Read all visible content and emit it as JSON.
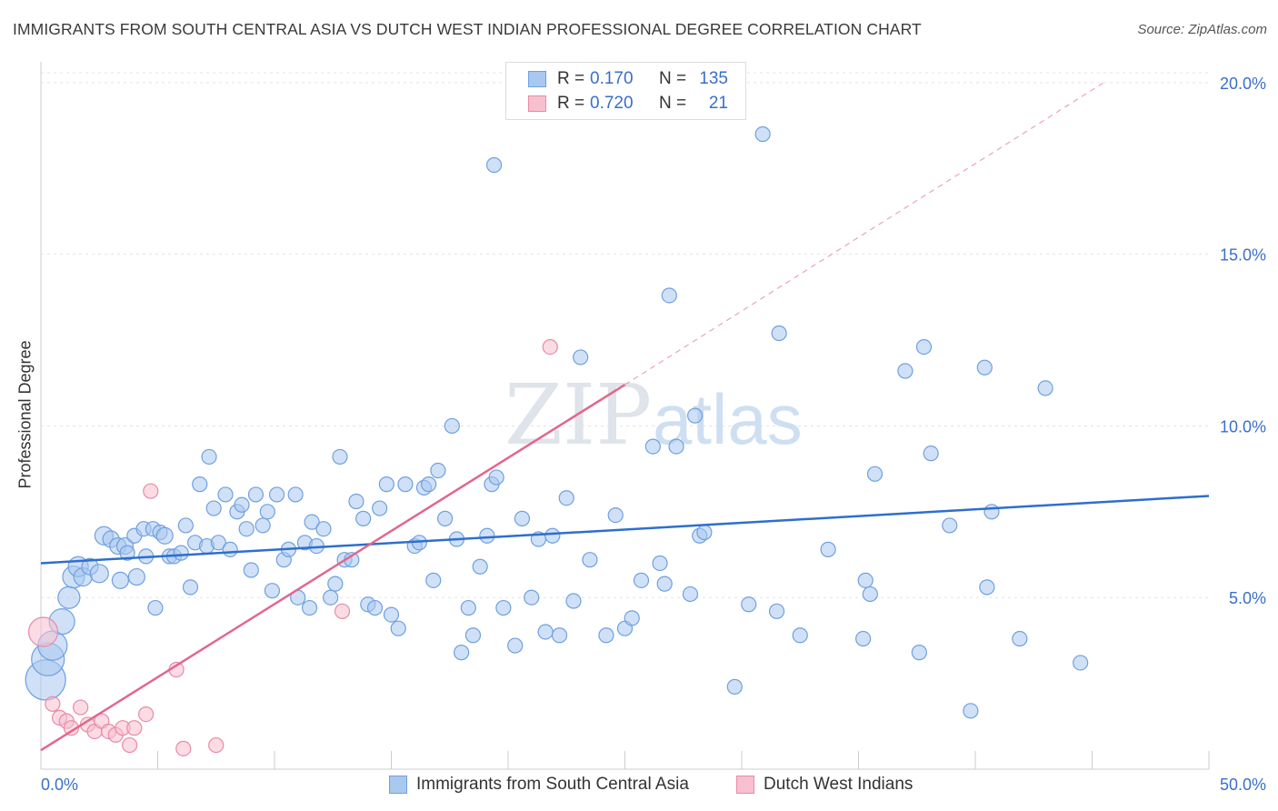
{
  "title": "IMMIGRANTS FROM SOUTH CENTRAL ASIA VS DUTCH WEST INDIAN PROFESSIONAL DEGREE CORRELATION CHART",
  "source": "Source: ZipAtlas.com",
  "watermark": {
    "zip": "ZIP",
    "atlas": "atlas"
  },
  "legend_box": {
    "rows": [
      {
        "r_label": "R =",
        "r_value": "0.170",
        "n_label": "N =",
        "n_value": "135",
        "color": "#a9c8f0",
        "border": "#6fa0df"
      },
      {
        "r_label": "R =",
        "r_value": "0.720",
        "n_label": "N =",
        "n_value": "21",
        "color": "#f7c0cf",
        "border": "#e98aa6"
      }
    ]
  },
  "bottom_legend": [
    {
      "label": "Immigrants from South Central Asia",
      "color": "#a9c8f0",
      "border": "#6fa0df"
    },
    {
      "label": "Dutch West Indians",
      "color": "#f7c0cf",
      "border": "#e98aa6"
    }
  ],
  "chart_data": {
    "type": "scatter",
    "title": "IMMIGRANTS FROM SOUTH CENTRAL ASIA VS DUTCH WEST INDIAN PROFESSIONAL DEGREE CORRELATION CHART",
    "xlabel": "",
    "ylabel": "Professional Degree",
    "xlim": [
      0,
      50
    ],
    "ylim": [
      0,
      20.5
    ],
    "x_tick_labels": [
      "0.0%",
      "50.0%"
    ],
    "y_ticks": [
      5,
      10,
      15,
      20
    ],
    "y_tick_labels": [
      "5.0%",
      "10.0%",
      "15.0%",
      "20.0%"
    ],
    "grid": true,
    "legend_position": "top-center",
    "series": [
      {
        "name": "Immigrants from South Central Asia",
        "color": "#6fa0df",
        "fill": "#a9c8f0",
        "trend": {
          "x": [
            0,
            50
          ],
          "y": [
            6.0,
            7.96
          ]
        },
        "points": [
          [
            0.2,
            2.6,
            22
          ],
          [
            0.3,
            3.2,
            18
          ],
          [
            0.5,
            3.6,
            16
          ],
          [
            0.9,
            4.3,
            14
          ],
          [
            1.2,
            5.0,
            12
          ],
          [
            1.4,
            5.6,
            12
          ],
          [
            1.6,
            5.9,
            11
          ],
          [
            1.8,
            5.6,
            10
          ],
          [
            2.1,
            5.9,
            9
          ],
          [
            2.5,
            5.7,
            10
          ],
          [
            2.7,
            6.8,
            10
          ],
          [
            3.0,
            6.7,
            9
          ],
          [
            3.3,
            6.5,
            9
          ],
          [
            3.4,
            5.5,
            9
          ],
          [
            3.6,
            6.5,
            9
          ],
          [
            3.7,
            6.3,
            8
          ],
          [
            4.0,
            6.8,
            8
          ],
          [
            4.1,
            5.6,
            9
          ],
          [
            4.4,
            7.0,
            8
          ],
          [
            4.5,
            6.2,
            8
          ],
          [
            4.8,
            7.0,
            8
          ],
          [
            4.9,
            4.7,
            8
          ],
          [
            5.1,
            6.9,
            8
          ],
          [
            5.3,
            6.8,
            9
          ],
          [
            5.5,
            6.2,
            8
          ],
          [
            5.7,
            6.2,
            8
          ],
          [
            6.0,
            6.3,
            8
          ],
          [
            6.2,
            7.1,
            8
          ],
          [
            6.4,
            5.3,
            8
          ],
          [
            6.6,
            6.6,
            8
          ],
          [
            6.8,
            8.3,
            8
          ],
          [
            7.1,
            6.5,
            8
          ],
          [
            7.2,
            9.1,
            8
          ],
          [
            7.4,
            7.6,
            8
          ],
          [
            7.6,
            6.6,
            8
          ],
          [
            7.9,
            8.0,
            8
          ],
          [
            8.1,
            6.4,
            8
          ],
          [
            8.4,
            7.5,
            8
          ],
          [
            8.6,
            7.7,
            8
          ],
          [
            8.8,
            7.0,
            8
          ],
          [
            9.0,
            5.8,
            8
          ],
          [
            9.2,
            8.0,
            8
          ],
          [
            9.5,
            7.1,
            8
          ],
          [
            9.7,
            7.5,
            8
          ],
          [
            9.9,
            5.2,
            8
          ],
          [
            10.1,
            8.0,
            8
          ],
          [
            10.4,
            6.1,
            8
          ],
          [
            10.6,
            6.4,
            8
          ],
          [
            10.9,
            8.0,
            8
          ],
          [
            11.0,
            5.0,
            8
          ],
          [
            11.3,
            6.6,
            8
          ],
          [
            11.5,
            4.7,
            8
          ],
          [
            11.6,
            7.2,
            8
          ],
          [
            11.8,
            6.5,
            8
          ],
          [
            12.1,
            7.0,
            8
          ],
          [
            12.4,
            5.0,
            8
          ],
          [
            12.6,
            5.4,
            8
          ],
          [
            12.8,
            9.1,
            8
          ],
          [
            13.0,
            6.1,
            8
          ],
          [
            13.3,
            6.1,
            8
          ],
          [
            13.5,
            7.8,
            8
          ],
          [
            13.8,
            7.3,
            8
          ],
          [
            14.0,
            4.8,
            8
          ],
          [
            14.3,
            4.7,
            8
          ],
          [
            14.5,
            7.6,
            8
          ],
          [
            14.8,
            8.3,
            8
          ],
          [
            15.0,
            4.5,
            8
          ],
          [
            15.3,
            4.1,
            8
          ],
          [
            15.6,
            8.3,
            8
          ],
          [
            16.0,
            6.5,
            8
          ],
          [
            16.2,
            6.6,
            8
          ],
          [
            16.4,
            8.2,
            8
          ],
          [
            16.6,
            8.3,
            8
          ],
          [
            16.8,
            5.5,
            8
          ],
          [
            17.0,
            8.7,
            8
          ],
          [
            17.3,
            7.3,
            8
          ],
          [
            17.6,
            10.0,
            8
          ],
          [
            17.8,
            6.7,
            8
          ],
          [
            18.0,
            3.4,
            8
          ],
          [
            18.3,
            4.7,
            8
          ],
          [
            18.5,
            3.9,
            8
          ],
          [
            18.8,
            5.9,
            8
          ],
          [
            19.1,
            6.8,
            8
          ],
          [
            19.3,
            8.3,
            8
          ],
          [
            19.5,
            8.5,
            8
          ],
          [
            19.8,
            4.7,
            8
          ],
          [
            19.4,
            17.6,
            8
          ],
          [
            20.3,
            3.6,
            8
          ],
          [
            20.6,
            7.3,
            8
          ],
          [
            21.0,
            5.0,
            8
          ],
          [
            21.3,
            6.7,
            8
          ],
          [
            21.6,
            4.0,
            8
          ],
          [
            21.9,
            6.8,
            8
          ],
          [
            22.2,
            3.9,
            8
          ],
          [
            22.5,
            7.9,
            8
          ],
          [
            22.8,
            4.9,
            8
          ],
          [
            23.1,
            12.0,
            8
          ],
          [
            23.5,
            6.1,
            8
          ],
          [
            24.2,
            3.9,
            8
          ],
          [
            24.6,
            7.4,
            8
          ],
          [
            25.0,
            4.1,
            8
          ],
          [
            25.3,
            4.4,
            8
          ],
          [
            25.7,
            5.5,
            8
          ],
          [
            26.2,
            9.4,
            8
          ],
          [
            26.5,
            6.0,
            8
          ],
          [
            26.7,
            5.4,
            8
          ],
          [
            26.9,
            13.8,
            8
          ],
          [
            27.2,
            9.4,
            8
          ],
          [
            27.8,
            5.1,
            8
          ],
          [
            28.0,
            10.3,
            8
          ],
          [
            28.2,
            6.8,
            8
          ],
          [
            29.7,
            2.4,
            8
          ],
          [
            30.3,
            4.8,
            8
          ],
          [
            31.5,
            4.6,
            8
          ],
          [
            31.6,
            12.7,
            8
          ],
          [
            30.9,
            18.5,
            8
          ],
          [
            32.5,
            3.9,
            8
          ],
          [
            33.7,
            6.4,
            8
          ],
          [
            35.2,
            3.8,
            8
          ],
          [
            35.3,
            5.5,
            8
          ],
          [
            35.5,
            5.1,
            8
          ],
          [
            35.7,
            8.6,
            8
          ],
          [
            37.0,
            11.6,
            8
          ],
          [
            37.6,
            3.4,
            8
          ],
          [
            37.8,
            12.3,
            8
          ],
          [
            38.1,
            9.2,
            8
          ],
          [
            38.9,
            7.1,
            8
          ],
          [
            39.8,
            1.7,
            8
          ],
          [
            40.4,
            11.7,
            8
          ],
          [
            40.5,
            5.3,
            8
          ],
          [
            40.7,
            7.5,
            8
          ],
          [
            41.9,
            3.8,
            8
          ],
          [
            43.0,
            11.1,
            8
          ],
          [
            44.5,
            3.1,
            8
          ],
          [
            28.4,
            6.9,
            8
          ]
        ]
      },
      {
        "name": "Dutch West Indians",
        "color": "#e98aa6",
        "fill": "#f7c0cf",
        "trend": {
          "x": [
            0,
            25
          ],
          "y": [
            0.55,
            11.2
          ]
        },
        "trend_extension": {
          "x": [
            25,
            45.5
          ],
          "y": [
            11.2,
            20.0
          ]
        },
        "points": [
          [
            0.1,
            4.0,
            16
          ],
          [
            0.5,
            1.9,
            8
          ],
          [
            0.8,
            1.5,
            8
          ],
          [
            1.1,
            1.4,
            8
          ],
          [
            1.3,
            1.2,
            8
          ],
          [
            1.7,
            1.8,
            8
          ],
          [
            2.0,
            1.3,
            8
          ],
          [
            2.3,
            1.1,
            8
          ],
          [
            2.6,
            1.4,
            8
          ],
          [
            2.9,
            1.1,
            8
          ],
          [
            3.2,
            1.0,
            8
          ],
          [
            3.5,
            1.2,
            8
          ],
          [
            3.8,
            0.7,
            8
          ],
          [
            4.0,
            1.2,
            8
          ],
          [
            4.5,
            1.6,
            8
          ],
          [
            4.7,
            8.1,
            8
          ],
          [
            5.8,
            2.9,
            8
          ],
          [
            6.1,
            0.6,
            8
          ],
          [
            7.5,
            0.7,
            8
          ],
          [
            12.9,
            4.6,
            8
          ],
          [
            21.8,
            12.3,
            8
          ]
        ]
      }
    ]
  }
}
